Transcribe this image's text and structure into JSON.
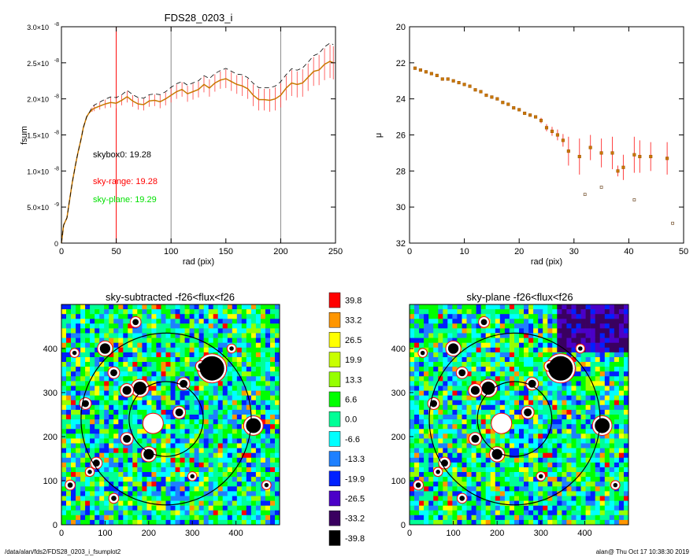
{
  "colors": {
    "profile": "#c87800",
    "error": "#ff4040",
    "marker": "#ff0000",
    "skybox_text": "#000000",
    "skyrange_text": "#ff0000",
    "skyplane_text": "#00e000",
    "colorbar": [
      "#000000",
      "#3a0060",
      "#4b00c8",
      "#0020ff",
      "#1e80ff",
      "#00ffff",
      "#00ff96",
      "#00ff00",
      "#96ff00",
      "#c8ff00",
      "#ffff00",
      "#ff9600",
      "#ff0000"
    ]
  },
  "labels": {
    "footer_left": "/data/alan/fds2/FDS28_0203_i_fsumplot2",
    "footer_right": "alan@  Thu Oct 17 10:38:30 2019"
  },
  "chart_data": [
    {
      "type": "line",
      "title": "FDS28_0203_i",
      "xlabel": "rad (pix)",
      "ylabel": "fsum",
      "xlim": [
        0,
        250
      ],
      "ylim": [
        0,
        3e-08
      ],
      "xticks": [
        "0",
        "50",
        "100",
        "150",
        "200",
        "250"
      ],
      "yticks": [
        {
          "base": "0",
          "exp": ""
        },
        {
          "base": "5.0×10",
          "exp": "-9"
        },
        {
          "base": "1.0×10",
          "exp": "-8"
        },
        {
          "base": "1.5×10",
          "exp": "-8"
        },
        {
          "base": "2.0×10",
          "exp": "-8"
        },
        {
          "base": "2.5×10",
          "exp": "-8"
        },
        {
          "base": "3.0×10",
          "exp": "-8"
        }
      ],
      "markers": [
        50,
        100,
        200
      ],
      "annotations": [
        "skybox0: 19.28",
        "sky-range: 19.28",
        "sky-plane: 19.29"
      ],
      "x": [
        0,
        2,
        5,
        8,
        10,
        13,
        15,
        18,
        20,
        23,
        25,
        28,
        30,
        35,
        40,
        45,
        50,
        55,
        60,
        65,
        70,
        75,
        80,
        85,
        90,
        95,
        100,
        105,
        110,
        115,
        120,
        125,
        130,
        135,
        140,
        145,
        150,
        155,
        160,
        165,
        170,
        175,
        180,
        185,
        190,
        195,
        200,
        205,
        210,
        215,
        220,
        225,
        230,
        235,
        240,
        245,
        248
      ],
      "y": [
        0.0,
        0.0025,
        0.0035,
        0.0065,
        0.0085,
        0.011,
        0.0125,
        0.0145,
        0.016,
        0.0175,
        0.018,
        0.0185,
        0.0187,
        0.019,
        0.0193,
        0.0195,
        0.0194,
        0.0198,
        0.0203,
        0.0197,
        0.0193,
        0.0192,
        0.0197,
        0.0198,
        0.0196,
        0.02,
        0.0205,
        0.021,
        0.0213,
        0.0207,
        0.021,
        0.0213,
        0.022,
        0.0215,
        0.0222,
        0.0226,
        0.0228,
        0.0224,
        0.022,
        0.0218,
        0.0214,
        0.0205,
        0.0199,
        0.0199,
        0.0198,
        0.02,
        0.0205,
        0.0215,
        0.0222,
        0.022,
        0.0222,
        0.023,
        0.0238,
        0.024,
        0.0248,
        0.0252,
        0.025
      ],
      "err": [
        0,
        0,
        0,
        0,
        0,
        0,
        0,
        0,
        0,
        0,
        0,
        0.0003,
        0.0004,
        0.0005,
        0.0006,
        0.0007,
        0.0007,
        0.0007,
        0.0008,
        0.0008,
        0.0008,
        0.0008,
        0.0008,
        0.0008,
        0.0009,
        0.0009,
        0.001,
        0.001,
        0.001,
        0.0011,
        0.0011,
        0.0011,
        0.0011,
        0.0012,
        0.0012,
        0.0012,
        0.0013,
        0.0013,
        0.0013,
        0.0014,
        0.0014,
        0.0015,
        0.0015,
        0.0015,
        0.0016,
        0.0016,
        0.0017,
        0.0017,
        0.0018,
        0.0018,
        0.0019,
        0.0019,
        0.002,
        0.0021,
        0.0022,
        0.0023,
        0.0023
      ],
      "y_scale": "1e-6"
    },
    {
      "type": "scatter",
      "title": "",
      "xlabel": "rad (pix)",
      "ylabel": "μ",
      "xlim": [
        0,
        50
      ],
      "ylim": [
        32,
        20
      ],
      "xticks": [
        "0",
        "10",
        "20",
        "30",
        "40",
        "50"
      ],
      "yticks": [
        "20",
        "22",
        "24",
        "26",
        "28",
        "30",
        "32"
      ],
      "x": [
        1,
        2,
        3,
        4,
        5,
        6,
        7,
        8,
        9,
        10,
        11,
        12,
        13,
        14,
        15,
        16,
        17,
        18,
        19,
        20,
        21,
        22,
        23,
        24,
        25,
        26,
        27,
        28,
        29,
        31,
        33,
        35,
        37,
        38,
        39,
        41,
        42,
        44,
        47
      ],
      "y": [
        22.3,
        22.4,
        22.5,
        22.6,
        22.7,
        22.9,
        22.9,
        23.0,
        23.1,
        23.2,
        23.3,
        23.5,
        23.6,
        23.8,
        23.9,
        24.0,
        24.2,
        24.3,
        24.5,
        24.6,
        24.8,
        24.9,
        25.0,
        25.2,
        25.6,
        25.8,
        26.0,
        26.3,
        26.9,
        27.2,
        26.7,
        27.0,
        27.0,
        28.0,
        27.8,
        27.1,
        27.2,
        27.2,
        27.3
      ],
      "err": [
        0,
        0,
        0,
        0,
        0,
        0,
        0,
        0,
        0,
        0,
        0,
        0,
        0,
        0,
        0,
        0,
        0,
        0,
        0,
        0,
        0,
        0,
        0,
        0.15,
        0.2,
        0.25,
        0.3,
        0.35,
        0.8,
        1.0,
        0.7,
        0.8,
        0.9,
        0.3,
        0.7,
        1.0,
        0.9,
        0.8,
        0.9
      ],
      "extra_points": [
        [
          32,
          29.3
        ],
        [
          35,
          28.9
        ],
        [
          41,
          29.6
        ],
        [
          48,
          30.9
        ]
      ]
    },
    {
      "type": "heatmap",
      "title": "sky-subtracted -f26<flux<f26",
      "xlim": [
        0,
        500
      ],
      "ylim": [
        0,
        500
      ],
      "xticks": [
        "0",
        "100",
        "200",
        "300",
        "400"
      ],
      "yticks": [
        "0",
        "100",
        "200",
        "300",
        "400"
      ],
      "center": [
        240,
        240
      ],
      "circle_radii": [
        85,
        195
      ],
      "holes": [
        [
          210,
          230,
          18
        ],
        [
          150,
          195,
          9
        ],
        [
          180,
          310,
          15
        ],
        [
          150,
          305,
          10
        ],
        [
          345,
          355,
          28
        ],
        [
          100,
          400,
          12
        ],
        [
          170,
          460,
          7
        ],
        [
          280,
          320,
          9
        ],
        [
          440,
          225,
          17
        ],
        [
          270,
          255,
          9
        ],
        [
          55,
          275,
          8
        ],
        [
          200,
          160,
          12
        ],
        [
          80,
          140,
          8
        ],
        [
          20,
          90,
          6
        ],
        [
          30,
          390,
          5
        ],
        [
          120,
          345,
          8
        ],
        [
          320,
          360,
          7
        ],
        [
          470,
          90,
          5
        ],
        [
          300,
          110,
          5
        ],
        [
          390,
          400,
          5
        ],
        [
          120,
          60,
          6
        ],
        [
          65,
          120,
          5
        ]
      ]
    },
    {
      "type": "heatmap",
      "title": "sky-plane -f26<flux<f26",
      "xlim": [
        0,
        500
      ],
      "ylim": [
        0,
        500
      ],
      "xticks": [
        "0",
        "100",
        "200",
        "300",
        "400"
      ],
      "yticks": [
        "0",
        "100",
        "200",
        "300",
        "400"
      ],
      "center": [
        240,
        240
      ],
      "circle_radii": [
        85,
        195
      ],
      "holes": [
        [
          210,
          230,
          18
        ],
        [
          150,
          195,
          9
        ],
        [
          180,
          310,
          15
        ],
        [
          150,
          305,
          10
        ],
        [
          345,
          355,
          28
        ],
        [
          100,
          400,
          12
        ],
        [
          170,
          460,
          7
        ],
        [
          280,
          320,
          9
        ],
        [
          440,
          225,
          17
        ],
        [
          270,
          255,
          9
        ],
        [
          55,
          275,
          8
        ],
        [
          200,
          160,
          12
        ],
        [
          80,
          140,
          8
        ],
        [
          20,
          90,
          6
        ],
        [
          30,
          390,
          5
        ],
        [
          120,
          345,
          8
        ],
        [
          320,
          360,
          7
        ],
        [
          470,
          90,
          5
        ],
        [
          300,
          110,
          5
        ],
        [
          390,
          400,
          5
        ],
        [
          120,
          60,
          6
        ],
        [
          65,
          120,
          5
        ]
      ]
    },
    {
      "type": "colorbar",
      "labels": [
        "39.8",
        "33.2",
        "26.5",
        "19.9",
        "13.3",
        "6.6",
        "0.0",
        "-6.6",
        "-13.3",
        "-19.9",
        "-26.5",
        "-33.2",
        "-39.8"
      ]
    }
  ]
}
